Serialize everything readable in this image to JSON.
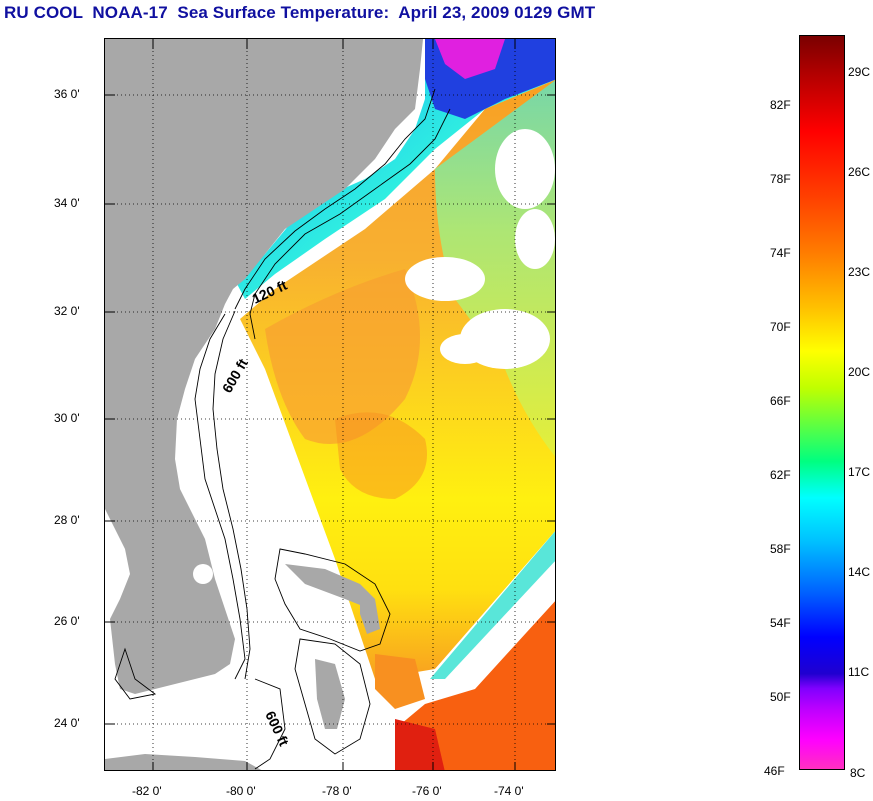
{
  "title": "RU COOL  NOAA-17  Sea Surface Temperature:  April 23, 2009 0129 GMT",
  "map": {
    "lat_labels": [
      "36 0'",
      "34 0'",
      "32 0'",
      "30 0'",
      "28 0'",
      "26 0'",
      "24 0'"
    ],
    "lon_labels": [
      "-82 0'",
      "-80 0'",
      "-78 0'",
      "-76 0'",
      "-74 0'"
    ],
    "contour_labels": [
      "120 ft",
      "600 ft",
      "600 ft"
    ],
    "colors": {
      "land": "#a8a8a8",
      "cloud_nodata": "#ffffff",
      "contour": "#000000"
    }
  },
  "colorbar": {
    "fahrenheit_labels": [
      "82F",
      "78F",
      "74F",
      "70F",
      "66F",
      "62F",
      "58F",
      "54F",
      "50F",
      "46F"
    ],
    "celsius_labels": [
      "29C",
      "26C",
      "23C",
      "20C",
      "17C",
      "14C",
      "11C",
      "8C"
    ]
  }
}
